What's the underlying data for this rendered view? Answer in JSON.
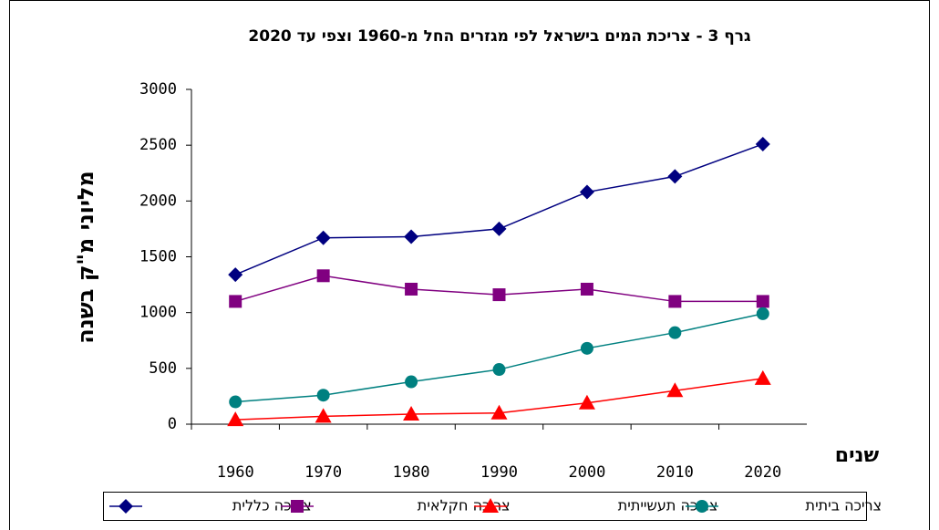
{
  "chart_data": {
    "type": "line",
    "title": "גרף 3 - צריכת המים בישראל לפי מגזרים החל מ-1960 וצפי עד 2020",
    "xlabel": "שנים",
    "ylabel": "מליוני מ\"ק בשנה",
    "categories": [
      "1960",
      "1970",
      "1980",
      "1990",
      "2000",
      "2010",
      "2020"
    ],
    "series": [
      {
        "name": "צריכה כללית",
        "color": "#000080",
        "marker": "diamond",
        "values": [
          1340,
          1670,
          1680,
          1750,
          2080,
          2220,
          2510
        ]
      },
      {
        "name": "צריכה חקלאית",
        "color": "#800080",
        "marker": "square",
        "values": [
          1100,
          1330,
          1210,
          1160,
          1210,
          1100,
          1100
        ]
      },
      {
        "name": "צריכה תעשייתית",
        "color": "#ff0000",
        "marker": "triangle",
        "values": [
          40,
          70,
          90,
          100,
          190,
          300,
          410
        ]
      },
      {
        "name": "צריכה ביתית",
        "color": "#008080",
        "marker": "circle",
        "values": [
          200,
          260,
          380,
          490,
          680,
          820,
          990
        ]
      }
    ],
    "ylim": [
      0,
      3000
    ],
    "yticks": [
      0,
      500,
      1000,
      1500,
      2000,
      2500,
      3000
    ],
    "grid": false
  }
}
